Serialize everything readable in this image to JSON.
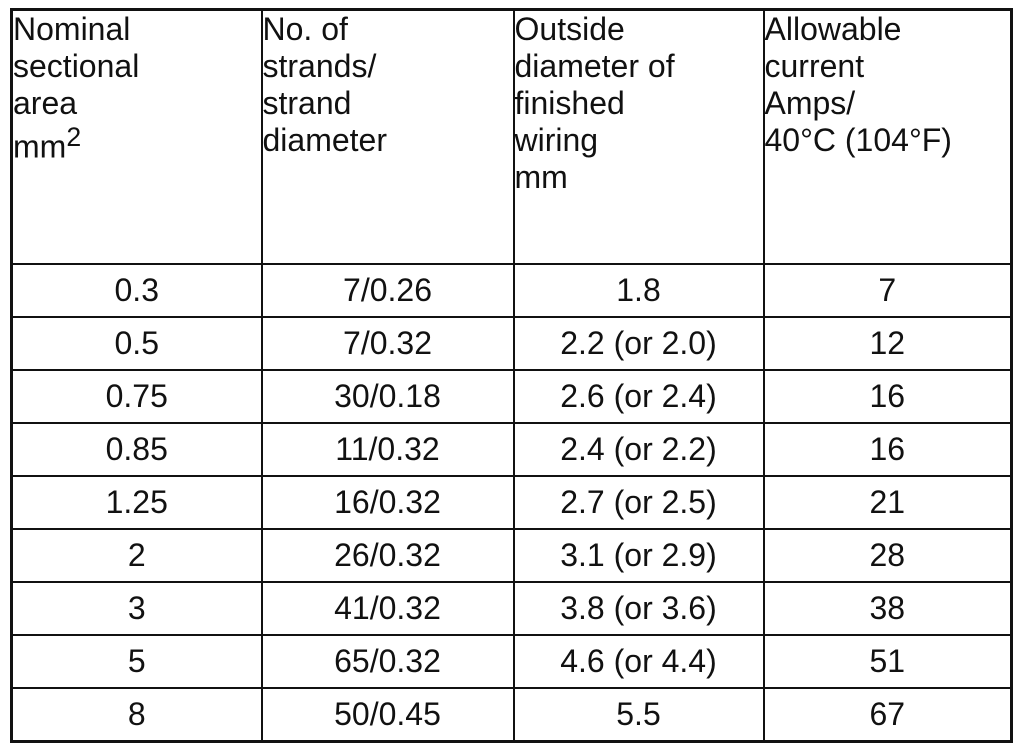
{
  "table": {
    "header": [
      {
        "lines": [
          "Nominal",
          "sectional",
          "area"
        ],
        "unit": {
          "base": "mm",
          "sup": "2"
        }
      },
      {
        "lines": [
          "No. of",
          "strands/",
          "strand",
          "diameter"
        ]
      },
      {
        "lines": [
          "Outside",
          "diameter of",
          "finished",
          "wiring"
        ],
        "unit": {
          "base": "mm"
        }
      },
      {
        "lines": [
          "Allowable",
          "current",
          "Amps/",
          "40°C (104°F)"
        ]
      }
    ],
    "rows": [
      [
        "0.3",
        "7/0.26",
        "1.8",
        "7"
      ],
      [
        "0.5",
        "7/0.32",
        "2.2 (or 2.0)",
        "12"
      ],
      [
        "0.75",
        "30/0.18",
        "2.6 (or 2.4)",
        "16"
      ],
      [
        "0.85",
        "11/0.32",
        "2.4 (or 2.2)",
        "16"
      ],
      [
        "1.25",
        "16/0.32",
        "2.7 (or 2.5)",
        "21"
      ],
      [
        "2",
        "26/0.32",
        "3.1 (or 2.9)",
        "28"
      ],
      [
        "3",
        "41/0.32",
        "3.8 (or 3.6)",
        "38"
      ],
      [
        "5",
        "65/0.32",
        "4.6 (or 4.4)",
        "51"
      ],
      [
        "8",
        "50/0.45",
        "5.5",
        "67"
      ]
    ]
  }
}
